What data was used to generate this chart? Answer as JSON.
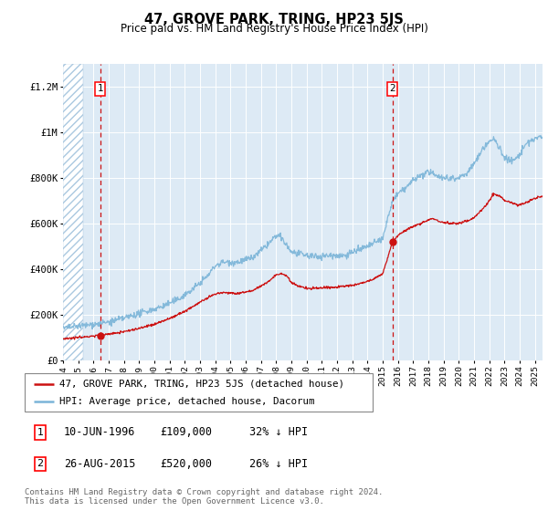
{
  "title": "47, GROVE PARK, TRING, HP23 5JS",
  "subtitle": "Price paid vs. HM Land Registry's House Price Index (HPI)",
  "footer": "Contains HM Land Registry data © Crown copyright and database right 2024.\nThis data is licensed under the Open Government Licence v3.0.",
  "legend_line1": "47, GROVE PARK, TRING, HP23 5JS (detached house)",
  "legend_line2": "HPI: Average price, detached house, Dacorum",
  "transaction1": {
    "date": "10-JUN-1996",
    "price": 109000,
    "note": "32% ↓ HPI",
    "year": 1996.44
  },
  "transaction2": {
    "date": "26-AUG-2015",
    "price": 520000,
    "note": "26% ↓ HPI",
    "year": 2015.65
  },
  "hpi_color": "#7ab4d8",
  "price_color": "#cc1111",
  "dot_color": "#cc1111",
  "vline_color": "#cc1111",
  "background_color": "#ddeaf5",
  "ylim": [
    0,
    1300000
  ],
  "xlim_start": 1994.0,
  "xlim_end": 2025.5
}
